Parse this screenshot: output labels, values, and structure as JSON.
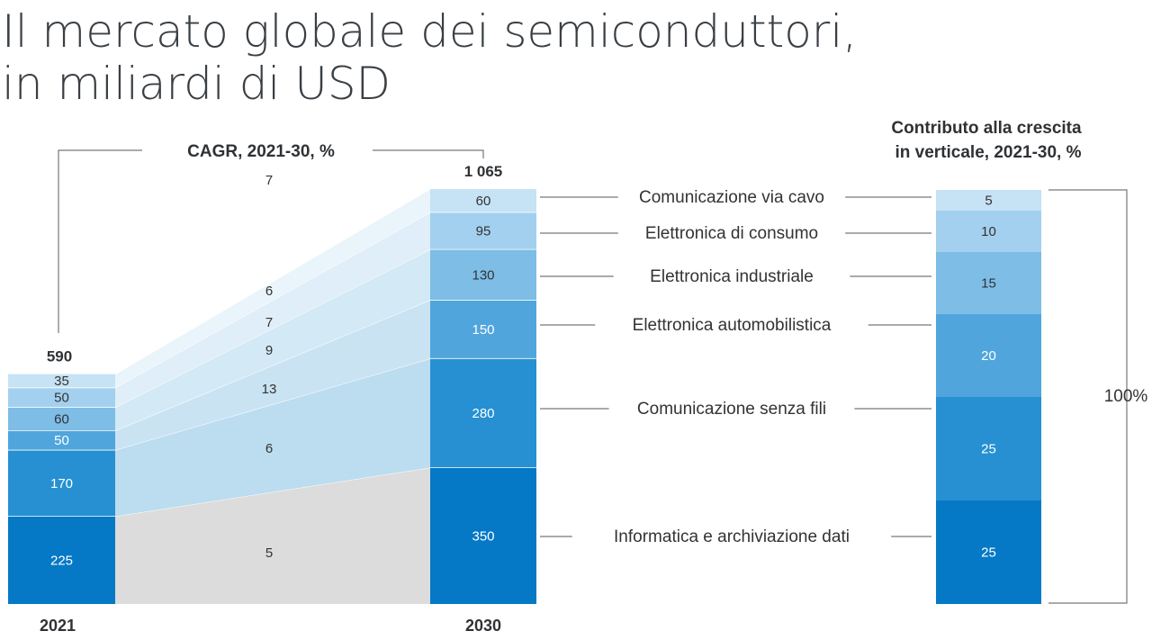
{
  "chart_data": {
    "type": "bar",
    "title": [
      "Il mercato globale dei semiconduttori,",
      "in miliardi di USD"
    ],
    "cagr_label": "CAGR, 2021-30, %",
    "growth_label": [
      "Contributo alla crescita",
      "in verticale, 2021-30, %"
    ],
    "categories": [
      "2021",
      "2030"
    ],
    "totals": [
      "590",
      "1 065"
    ],
    "series": [
      {
        "name": "Informatica e archiviazione dati",
        "values": [
          225,
          350
        ],
        "cagr": 5,
        "growth": 25,
        "color": "#0579c6"
      },
      {
        "name": "Comunicazione senza fili",
        "values": [
          170,
          280
        ],
        "cagr": 6,
        "growth": 25,
        "color": "#2690d2"
      },
      {
        "name": "Elettronica automobilistica",
        "values": [
          50,
          150
        ],
        "cagr": 13,
        "growth": 20,
        "color": "#50a5dc"
      },
      {
        "name": "Elettronica industriale",
        "values": [
          60,
          130
        ],
        "cagr": 9,
        "growth": 15,
        "color": "#7dbde6"
      },
      {
        "name": "Elettronica di consumo",
        "values": [
          50,
          95
        ],
        "cagr": 7,
        "growth": 10,
        "color": "#a3d0ee"
      },
      {
        "name": "Comunicazione via cavo",
        "values": [
          35,
          60
        ],
        "cagr": 6,
        "growth": 5,
        "color": "#c6e2f5"
      }
    ],
    "overall_cagr": 7,
    "growth_total_label": "100%"
  }
}
